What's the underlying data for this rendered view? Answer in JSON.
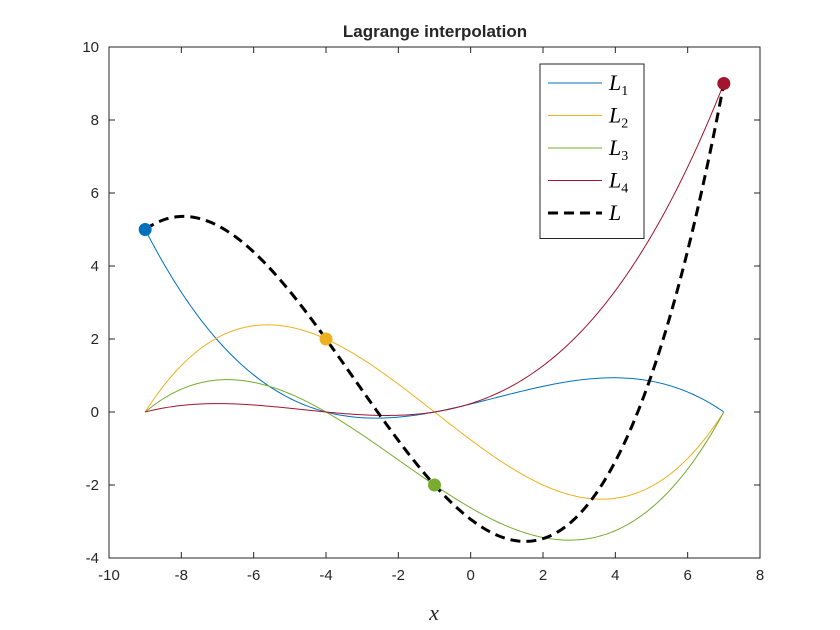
{
  "chart_data": {
    "type": "line",
    "title": "Lagrange interpolation",
    "xlabel": "x",
    "ylabel": "",
    "xlim": [
      -10,
      8
    ],
    "ylim": [
      -4,
      10
    ],
    "xticks": [
      -10,
      -8,
      -6,
      -4,
      -2,
      0,
      2,
      4,
      6,
      8
    ],
    "yticks": [
      -4,
      -2,
      0,
      2,
      4,
      6,
      8,
      10
    ],
    "grid": false,
    "legend_position": "top-right",
    "nodes": [
      {
        "x": -9,
        "y": 5,
        "color": "#0072BD"
      },
      {
        "x": -4,
        "y": 2,
        "color": "#EDB120"
      },
      {
        "x": -1,
        "y": -2,
        "color": "#77AC30"
      },
      {
        "x": 7,
        "y": 9,
        "color": "#A2142F"
      }
    ],
    "series": [
      {
        "name": "L",
        "sub": "1",
        "color": "#0072BD",
        "style": "solid",
        "role": "basis",
        "node_index": 0
      },
      {
        "name": "L",
        "sub": "2",
        "color": "#EDB120",
        "style": "solid",
        "role": "basis",
        "node_index": 1
      },
      {
        "name": "L",
        "sub": "3",
        "color": "#77AC30",
        "style": "solid",
        "role": "basis",
        "node_index": 2
      },
      {
        "name": "L",
        "sub": "4",
        "color": "#A2142F",
        "style": "solid",
        "role": "basis",
        "node_index": 3
      },
      {
        "name": "L",
        "sub": "",
        "color": "#000000",
        "style": "dashed",
        "role": "interpolant"
      }
    ]
  }
}
